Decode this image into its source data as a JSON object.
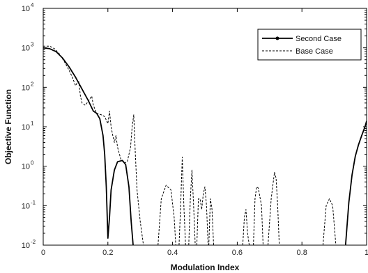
{
  "chart_data": {
    "type": "line",
    "title": "",
    "xlabel": "Modulation Index",
    "ylabel": "Objective Function",
    "xlim": [
      0,
      1
    ],
    "ylim": [
      0.01,
      10000
    ],
    "yscale": "log",
    "xticks": [
      "0",
      "0.2",
      "0.4",
      "0.6",
      "0.8",
      "1"
    ],
    "yticks": [
      {
        "base": "10",
        "exp": "-2",
        "value": 0.01
      },
      {
        "base": "10",
        "exp": "-1",
        "value": 0.1
      },
      {
        "base": "10",
        "exp": "0",
        "value": 1
      },
      {
        "base": "10",
        "exp": "1",
        "value": 10
      },
      {
        "base": "10",
        "exp": "2",
        "value": 100
      },
      {
        "base": "10",
        "exp": "3",
        "value": 1000
      },
      {
        "base": "10",
        "exp": "4",
        "value": 10000
      }
    ],
    "legend_position": "top-right",
    "grid": false,
    "series": [
      {
        "name": "Second Case",
        "color": "#000000",
        "style": "solid",
        "marker": "dot",
        "segments": [
          [
            [
              0,
              1000
            ],
            [
              0.02,
              950
            ],
            [
              0.04,
              800
            ],
            [
              0.06,
              550
            ],
            [
              0.08,
              330
            ],
            [
              0.1,
              180
            ],
            [
              0.12,
              90
            ],
            [
              0.14,
              45
            ],
            [
              0.155,
              25
            ],
            [
              0.165,
              22
            ],
            [
              0.175,
              16
            ],
            [
              0.185,
              6
            ],
            [
              0.19,
              2
            ],
            [
              0.195,
              0.3
            ],
            [
              0.2,
              0.015
            ],
            [
              0.205,
              0.05
            ],
            [
              0.21,
              0.25
            ],
            [
              0.22,
              0.8
            ],
            [
              0.23,
              1.3
            ],
            [
              0.245,
              1.4
            ],
            [
              0.255,
              1.1
            ],
            [
              0.265,
              0.3
            ],
            [
              0.272,
              0.04
            ],
            [
              0.278,
              0.01
            ]
          ],
          [
            [
              0.935,
              0.01
            ],
            [
              0.945,
              0.12
            ],
            [
              0.955,
              0.6
            ],
            [
              0.965,
              1.8
            ],
            [
              0.975,
              3.5
            ],
            [
              0.985,
              6
            ],
            [
              0.995,
              10
            ],
            [
              1.0,
              14
            ]
          ]
        ]
      },
      {
        "name": "Base Case",
        "color": "#000000",
        "style": "dashed",
        "marker": "",
        "segments": [
          [
            [
              0,
              1100
            ],
            [
              0.02,
              1100
            ],
            [
              0.035,
              950
            ],
            [
              0.05,
              700
            ],
            [
              0.065,
              450
            ],
            [
              0.08,
              270
            ],
            [
              0.09,
              180
            ],
            [
              0.1,
              110
            ],
            [
              0.105,
              130
            ],
            [
              0.11,
              140
            ],
            [
              0.115,
              60
            ],
            [
              0.12,
              40
            ],
            [
              0.13,
              35
            ],
            [
              0.14,
              45
            ],
            [
              0.15,
              60
            ],
            [
              0.155,
              35
            ],
            [
              0.165,
              22
            ],
            [
              0.18,
              20
            ],
            [
              0.19,
              18
            ],
            [
              0.2,
              12
            ],
            [
              0.205,
              25
            ],
            [
              0.21,
              10
            ],
            [
              0.215,
              6
            ],
            [
              0.22,
              4
            ],
            [
              0.225,
              6
            ],
            [
              0.23,
              3
            ],
            [
              0.24,
              1.5
            ],
            [
              0.25,
              1.2
            ],
            [
              0.26,
              1.3
            ],
            [
              0.27,
              3
            ],
            [
              0.275,
              10
            ],
            [
              0.28,
              20
            ],
            [
              0.285,
              2
            ],
            [
              0.29,
              0.25
            ],
            [
              0.3,
              0.04
            ],
            [
              0.31,
              0.01
            ]
          ],
          [
            [
              0.355,
              0.01
            ],
            [
              0.365,
              0.15
            ],
            [
              0.38,
              0.33
            ],
            [
              0.395,
              0.25
            ],
            [
              0.405,
              0.05
            ],
            [
              0.41,
              0.01
            ]
          ],
          [
            [
              0.42,
              0.01
            ],
            [
              0.425,
              0.1
            ],
            [
              0.43,
              1.7
            ],
            [
              0.435,
              0.1
            ],
            [
              0.44,
              0.01
            ]
          ],
          [
            [
              0.45,
              0.01
            ],
            [
              0.455,
              0.15
            ],
            [
              0.46,
              0.8
            ],
            [
              0.465,
              0.1
            ],
            [
              0.47,
              0.01
            ]
          ],
          [
            [
              0.475,
              0.01
            ],
            [
              0.48,
              0.15
            ],
            [
              0.485,
              0.15
            ],
            [
              0.49,
              0.08
            ],
            [
              0.495,
              0.2
            ],
            [
              0.5,
              0.3
            ],
            [
              0.505,
              0.1
            ],
            [
              0.51,
              0.01
            ]
          ],
          [
            [
              0.512,
              0.01
            ],
            [
              0.517,
              0.15
            ],
            [
              0.522,
              0.08
            ],
            [
              0.527,
              0.01
            ]
          ],
          [
            [
              0.617,
              0.01
            ],
            [
              0.622,
              0.05
            ],
            [
              0.627,
              0.08
            ],
            [
              0.632,
              0.02
            ],
            [
              0.637,
              0.01
            ]
          ],
          [
            [
              0.65,
              0.01
            ],
            [
              0.655,
              0.15
            ],
            [
              0.66,
              0.3
            ],
            [
              0.665,
              0.28
            ],
            [
              0.675,
              0.1
            ],
            [
              0.68,
              0.01
            ]
          ],
          [
            [
              0.695,
              0.01
            ],
            [
              0.705,
              0.15
            ],
            [
              0.715,
              0.7
            ],
            [
              0.72,
              0.5
            ],
            [
              0.725,
              0.1
            ],
            [
              0.73,
              0.01
            ]
          ],
          [
            [
              0.865,
              0.01
            ],
            [
              0.875,
              0.1
            ],
            [
              0.885,
              0.15
            ],
            [
              0.895,
              0.1
            ],
            [
              0.905,
              0.01
            ]
          ]
        ]
      }
    ]
  }
}
